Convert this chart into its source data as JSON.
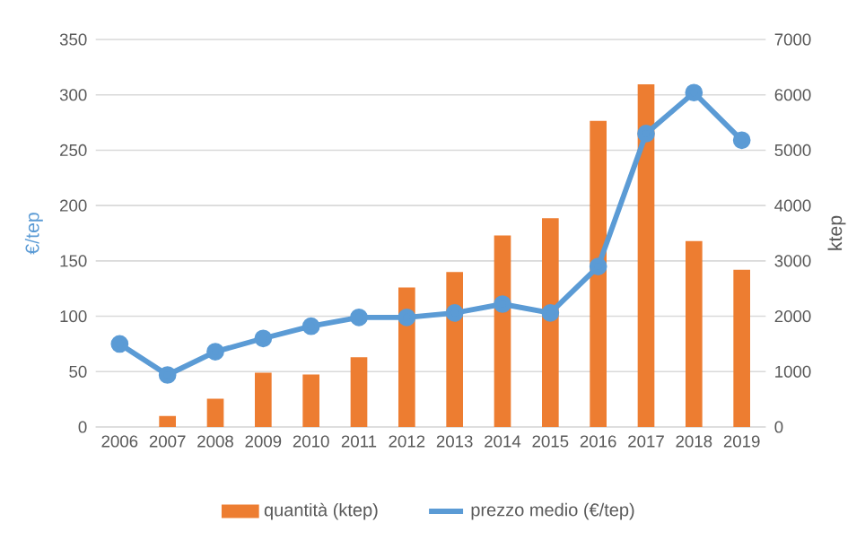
{
  "chart_data": {
    "type": "bar",
    "categories": [
      "2006",
      "2007",
      "2008",
      "2009",
      "2010",
      "2011",
      "2012",
      "2013",
      "2014",
      "2015",
      "2016",
      "2017",
      "2018",
      "2019"
    ],
    "series": [
      {
        "name": "quantità (ktep)",
        "axis": "y2",
        "color": "#ed7d31",
        "values": [
          0,
          200,
          510,
          980,
          950,
          1260,
          2520,
          2800,
          3460,
          3770,
          5530,
          6190,
          3360,
          2840
        ]
      },
      {
        "name": "prezzo medio  (€/tep)",
        "type": "line",
        "color": "#5b9bd5",
        "marker": "circle",
        "values": [
          75,
          47,
          68,
          80,
          91,
          99,
          99,
          103,
          111,
          103,
          145,
          265,
          302,
          259
        ]
      }
    ],
    "ylabel": "€/tep",
    "y2label": "ktep",
    "ylim": [
      0,
      350
    ],
    "yticks": [
      0,
      50,
      100,
      150,
      200,
      250,
      300,
      350
    ],
    "y2lim": [
      0,
      7000
    ],
    "y2ticks": [
      0,
      1000,
      2000,
      3000,
      4000,
      5000,
      6000,
      7000
    ],
    "grid": "y",
    "legend": "bottom"
  }
}
